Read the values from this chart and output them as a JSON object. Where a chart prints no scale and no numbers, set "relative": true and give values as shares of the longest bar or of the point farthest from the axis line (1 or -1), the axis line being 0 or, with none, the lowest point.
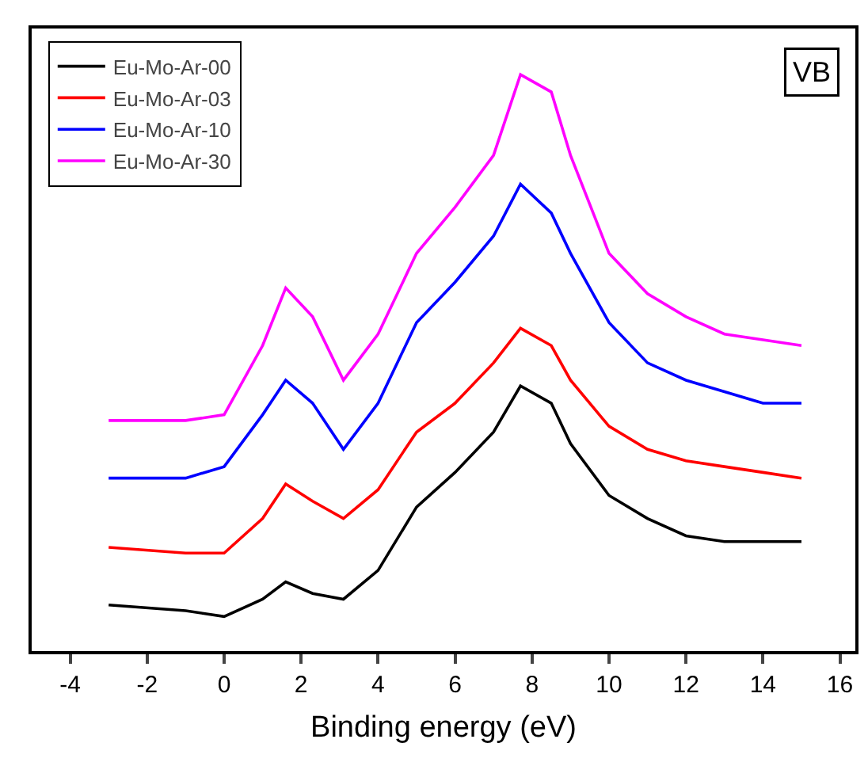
{
  "chart_data": {
    "type": "line",
    "relative": true,
    "xlabel": "Binding energy (eV)",
    "annotations": [
      "VB"
    ],
    "x": [
      -3,
      -1,
      0,
      1,
      1.6,
      2.3,
      3.1,
      4,
      5,
      6,
      7,
      7.7,
      8.5,
      9,
      10,
      11,
      12,
      13,
      14,
      15
    ],
    "xlim": [
      -5,
      16.4
    ],
    "xticks": [
      -4,
      -2,
      0,
      2,
      4,
      6,
      8,
      10,
      12,
      14,
      16
    ],
    "series": [
      {
        "name": "Eu-Mo-Ar-00",
        "color": "#000000",
        "values": [
          0.08,
          0.07,
          0.06,
          0.09,
          0.12,
          0.1,
          0.09,
          0.14,
          0.25,
          0.31,
          0.38,
          0.46,
          0.43,
          0.36,
          0.27,
          0.23,
          0.2,
          0.19,
          0.19,
          0.19
        ]
      },
      {
        "name": "Eu-Mo-Ar-03",
        "color": "#ff0000",
        "values": [
          0.18,
          0.17,
          0.17,
          0.23,
          0.29,
          0.26,
          0.23,
          0.28,
          0.38,
          0.43,
          0.5,
          0.56,
          0.53,
          0.47,
          0.39,
          0.35,
          0.33,
          0.32,
          0.31,
          0.3
        ]
      },
      {
        "name": "Eu-Mo-Ar-10",
        "color": "#0000ff",
        "values": [
          0.3,
          0.3,
          0.32,
          0.41,
          0.47,
          0.43,
          0.35,
          0.43,
          0.57,
          0.64,
          0.72,
          0.81,
          0.76,
          0.69,
          0.57,
          0.5,
          0.47,
          0.45,
          0.43,
          0.43
        ]
      },
      {
        "name": "Eu-Mo-Ar-30",
        "color": "#ff00ff",
        "values": [
          0.4,
          0.4,
          0.41,
          0.53,
          0.63,
          0.58,
          0.47,
          0.55,
          0.69,
          0.77,
          0.86,
          1,
          0.97,
          0.86,
          0.69,
          0.62,
          0.58,
          0.55,
          0.54,
          0.53
        ]
      }
    ],
    "grid": false,
    "legend": "top left",
    "marker": "none",
    "line_style": "solid"
  }
}
